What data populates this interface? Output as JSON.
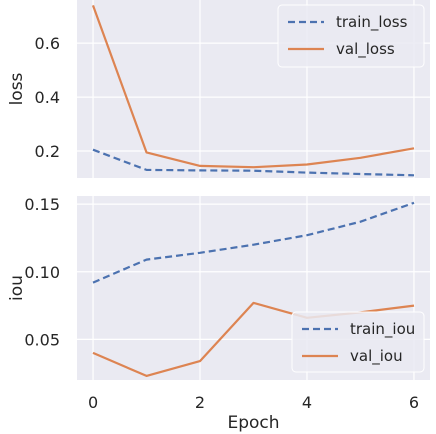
{
  "chart_data": [
    {
      "type": "line",
      "ylabel": "loss",
      "xlabel": "",
      "x": [
        0,
        1,
        2,
        3,
        4,
        5,
        6
      ],
      "xlim": [
        -0.3,
        6.3
      ],
      "ylim": [
        0.1,
        0.76
      ],
      "yticks": [
        0.2,
        0.4,
        0.6
      ],
      "ytick_labels": [
        "0.2",
        "0.4",
        "0.6"
      ],
      "grid": true,
      "legend_placement": "top-right",
      "series": [
        {
          "name": "train_loss",
          "style": "dashed",
          "color": "#4c72b0",
          "values": [
            0.205,
            0.13,
            0.128,
            0.127,
            0.12,
            0.115,
            0.11
          ]
        },
        {
          "name": "val_loss",
          "style": "solid",
          "color": "#dd8452",
          "values": [
            0.74,
            0.195,
            0.145,
            0.14,
            0.15,
            0.175,
            0.21
          ]
        }
      ]
    },
    {
      "type": "line",
      "ylabel": "iou",
      "xlabel": "Epoch",
      "x": [
        0,
        1,
        2,
        3,
        4,
        5,
        6
      ],
      "xlim": [
        -0.3,
        6.3
      ],
      "ylim": [
        0.02,
        0.156
      ],
      "xticks": [
        0,
        2,
        4,
        6
      ],
      "xtick_labels": [
        "0",
        "2",
        "4",
        "6"
      ],
      "yticks": [
        0.05,
        0.1,
        0.15
      ],
      "ytick_labels": [
        "0.05",
        "0.10",
        "0.15"
      ],
      "grid": true,
      "legend_placement": "bottom-right",
      "series": [
        {
          "name": "train_iou",
          "style": "dashed",
          "color": "#4c72b0",
          "values": [
            0.092,
            0.109,
            0.114,
            0.12,
            0.127,
            0.137,
            0.151
          ]
        },
        {
          "name": "val_iou",
          "style": "solid",
          "color": "#dd8452",
          "values": [
            0.04,
            0.023,
            0.034,
            0.077,
            0.066,
            0.07,
            0.075
          ]
        }
      ]
    }
  ]
}
